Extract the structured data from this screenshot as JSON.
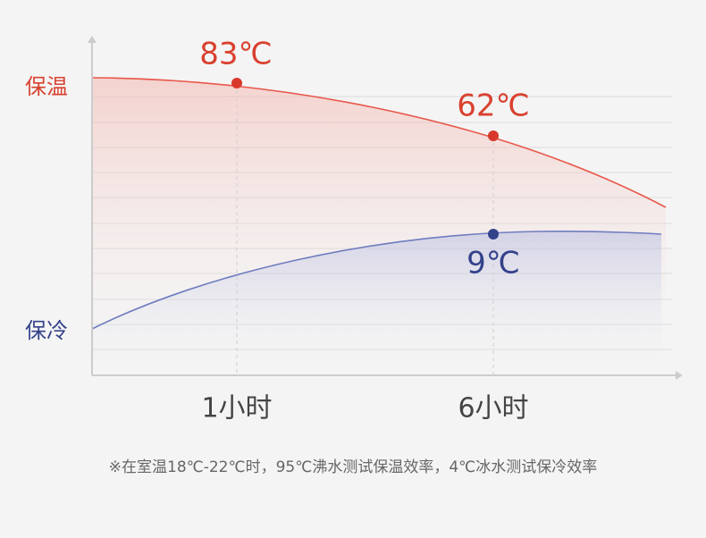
{
  "series_labels": {
    "warm": "保温",
    "cold": "保冷"
  },
  "time_labels": [
    "1小时",
    "6小时"
  ],
  "point_labels": {
    "warm_1h": "83℃",
    "warm_6h": "62℃",
    "cold_6h": "9℃"
  },
  "footnote": "※在室温18℃-22℃时，95℃沸水测试保温效率，4℃冰水测试保冷效率"
}
